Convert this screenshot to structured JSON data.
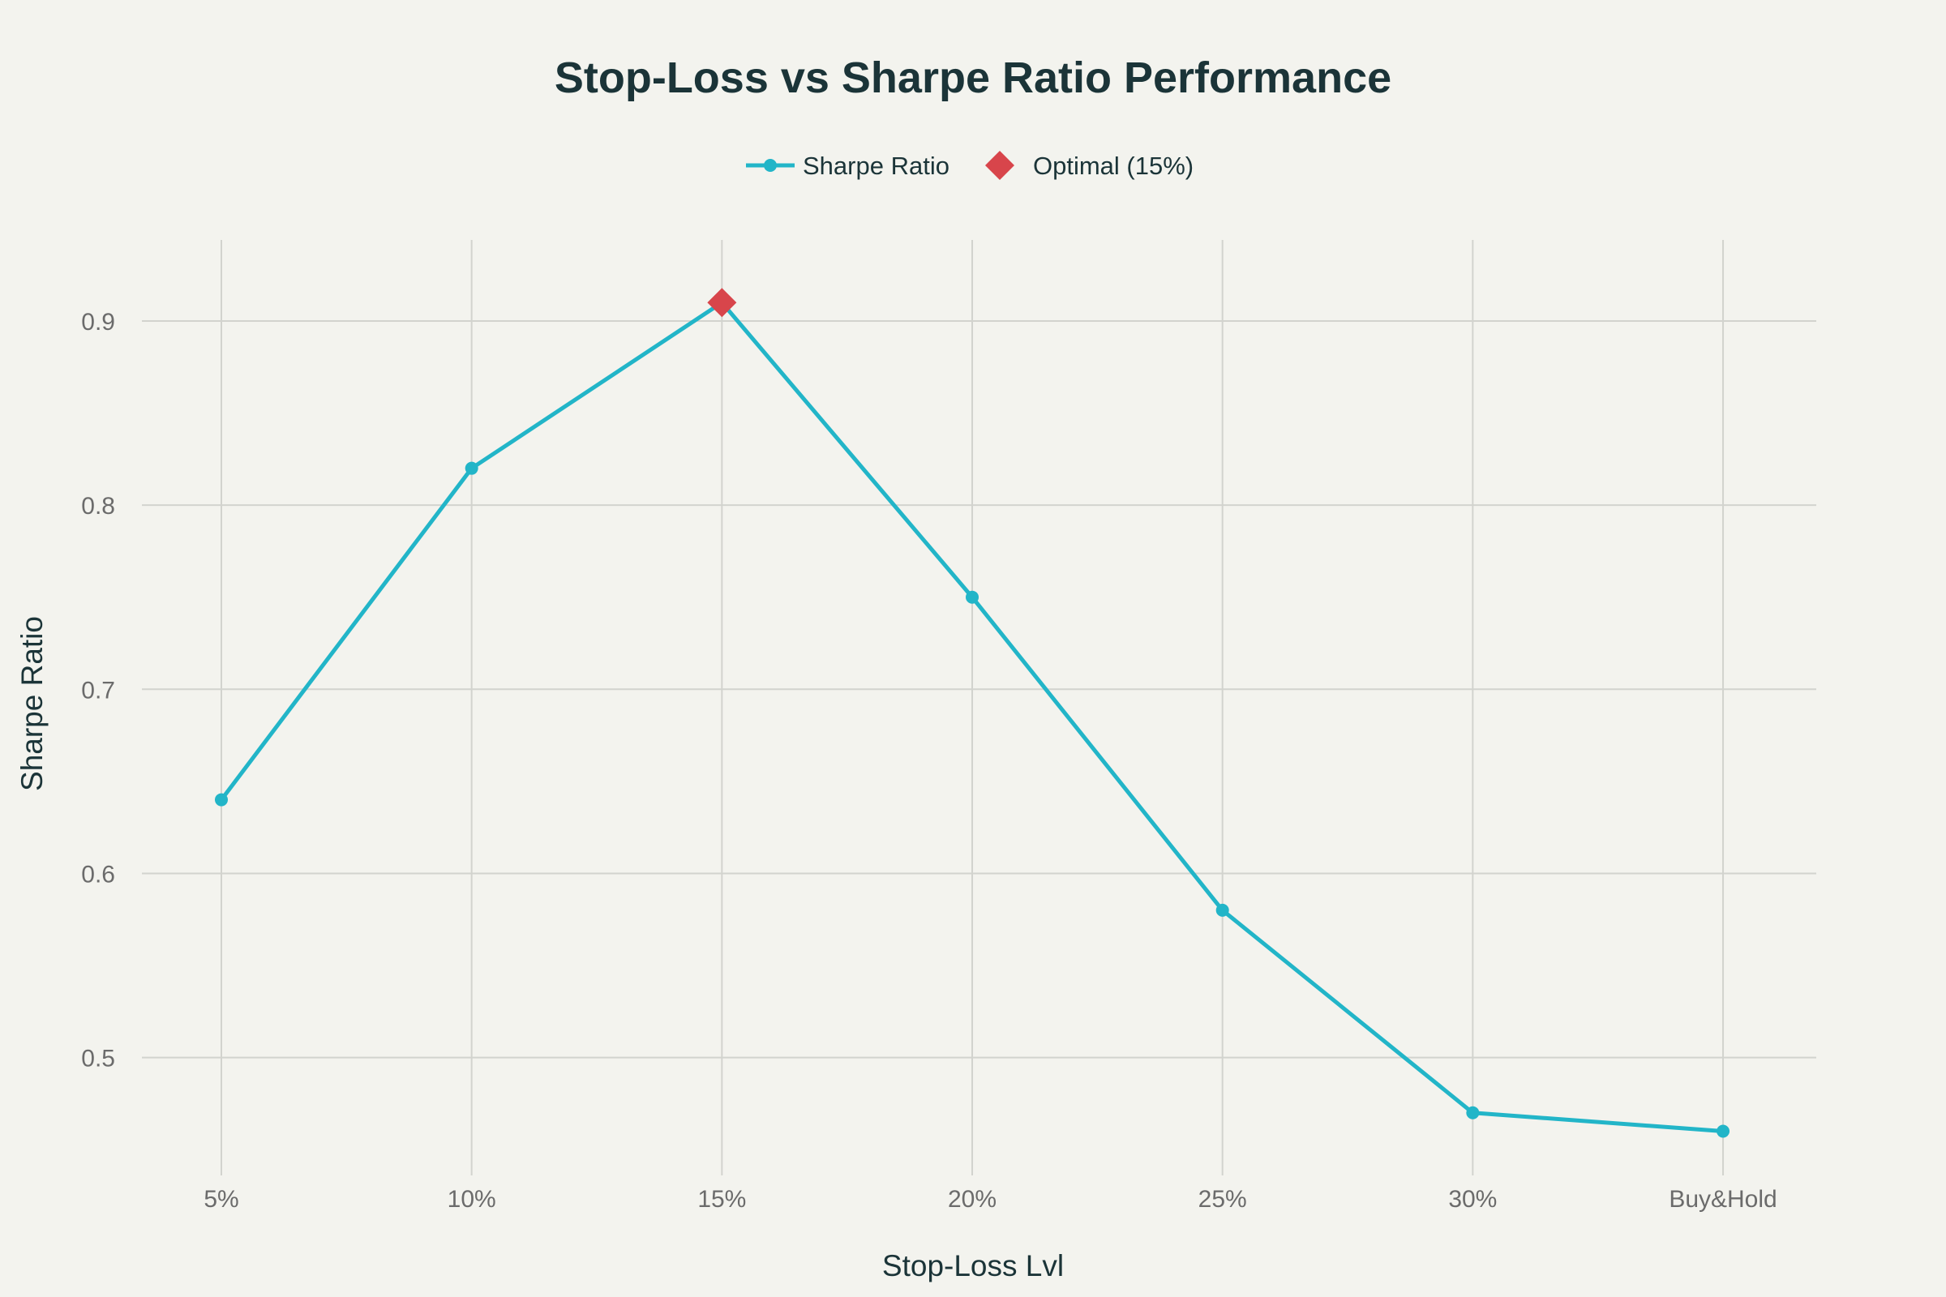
{
  "chart_data": {
    "type": "line",
    "title": "Stop-Loss vs Sharpe Ratio Performance",
    "xlabel": "Stop-Loss Lvl",
    "ylabel": "Sharpe Ratio",
    "categories": [
      "5%",
      "10%",
      "15%",
      "20%",
      "25%",
      "30%",
      "Buy&Hold"
    ],
    "series": [
      {
        "name": "Sharpe Ratio",
        "values": [
          0.64,
          0.82,
          0.91,
          0.75,
          0.58,
          0.47,
          0.46
        ],
        "color": "#22b5c8"
      }
    ],
    "highlight": {
      "name": "Optimal (15%)",
      "category": "15%",
      "value": 0.91,
      "color": "#d8454b",
      "marker": "diamond"
    },
    "ylim": [
      0.436,
      0.944
    ],
    "yticks": [
      0.5,
      0.6,
      0.7,
      0.8,
      0.9
    ],
    "ytick_labels": [
      "0.5",
      "0.6",
      "0.7",
      "0.8",
      "0.9"
    ],
    "grid": true,
    "legend_position": "top-center",
    "background": "#f3f3ee",
    "grid_color": "#d2d3ce",
    "text_color": "#1b3438",
    "tick_color": "#6b6b6b"
  }
}
